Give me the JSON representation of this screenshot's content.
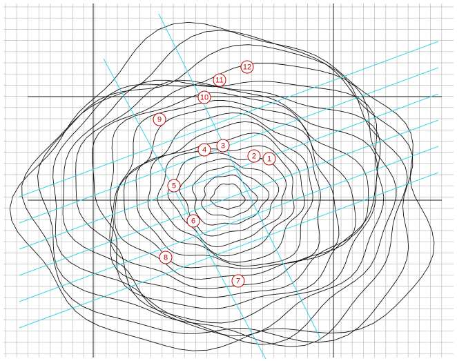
{
  "map": {
    "markers": [
      {
        "label": "1"
      },
      {
        "label": "2"
      },
      {
        "label": "3"
      },
      {
        "label": "4"
      },
      {
        "label": "5"
      },
      {
        "label": "6"
      },
      {
        "label": "7"
      },
      {
        "label": "8"
      },
      {
        "label": "9"
      },
      {
        "label": "10"
      },
      {
        "label": "11"
      },
      {
        "label": "12"
      }
    ]
  }
}
